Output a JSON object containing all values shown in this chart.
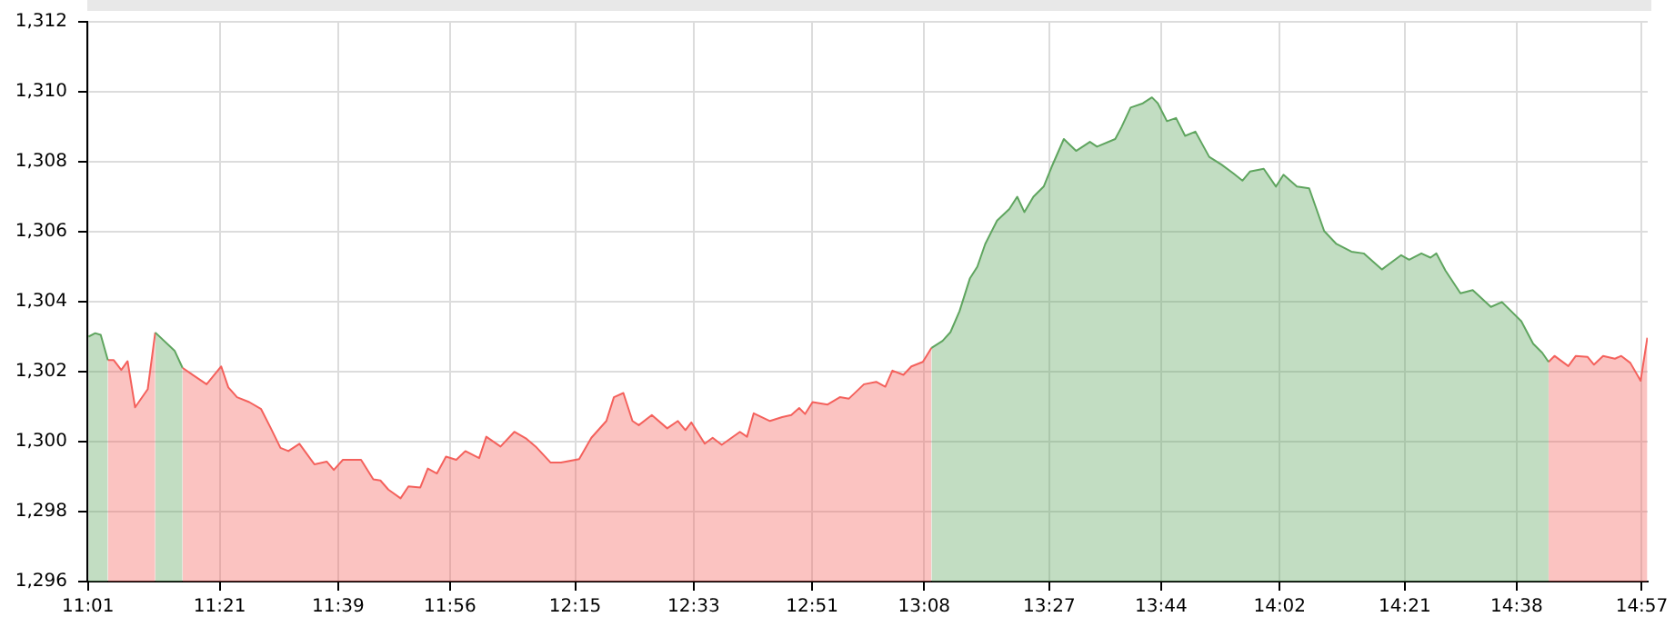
{
  "chart_data": {
    "type": "area",
    "marker": "none",
    "grid": true,
    "x": [
      11.018,
      11.035,
      11.049,
      11.067,
      11.082,
      11.101,
      11.117,
      11.136,
      11.168,
      11.187,
      11.236,
      11.256,
      11.283,
      11.317,
      11.354,
      11.372,
      11.394,
      11.425,
      11.455,
      11.478,
      11.504,
      11.524,
      11.552,
      11.59,
      11.621,
      11.639,
      11.662,
      11.708,
      11.739,
      11.757,
      11.777,
      11.808,
      11.828,
      11.858,
      11.877,
      11.9,
      11.923,
      11.949,
      11.972,
      12.007,
      12.025,
      12.061,
      12.096,
      12.127,
      12.15,
      12.188,
      12.214,
      12.26,
      12.291,
      12.329,
      12.348,
      12.372,
      12.395,
      12.411,
      12.444,
      12.483,
      12.51,
      12.529,
      12.544,
      12.578,
      12.598,
      12.621,
      12.667,
      12.685,
      12.702,
      12.743,
      12.774,
      12.797,
      12.817,
      12.832,
      12.851,
      12.889,
      12.92,
      12.943,
      12.981,
      13.012,
      13.035,
      13.053,
      13.081,
      13.101,
      13.13,
      13.152,
      13.18,
      13.2,
      13.223,
      13.249,
      13.268,
      13.288,
      13.318,
      13.349,
      13.369,
      13.387,
      13.41,
      13.436,
      13.456,
      13.487,
      13.518,
      13.553,
      13.571,
      13.617,
      13.633,
      13.656,
      13.687,
      13.71,
      13.725,
      13.748,
      13.771,
      13.794,
      13.82,
      13.855,
      13.886,
      13.916,
      13.939,
      13.958,
      13.993,
      14.024,
      14.043,
      14.077,
      14.108,
      14.146,
      14.177,
      14.215,
      14.246,
      14.292,
      14.341,
      14.361,
      14.392,
      14.415,
      14.43,
      14.453,
      14.491,
      14.522,
      14.568,
      14.596,
      14.645,
      14.675,
      14.698,
      14.714,
      14.729,
      14.764,
      14.783,
      14.813,
      14.829,
      14.852,
      14.882,
      14.898,
      14.921,
      14.947,
      14.964
    ],
    "series": [
      {
        "color": "#5fa55f",
        "values": [
          1303.0,
          1303.1,
          1303.05,
          1302.33,
          null,
          null,
          null,
          null,
          null,
          1303.12,
          1302.6,
          1302.11,
          null,
          null,
          null,
          null,
          null,
          null,
          null,
          null,
          null,
          null,
          null,
          null,
          null,
          null,
          null,
          null,
          null,
          null,
          null,
          null,
          null,
          null,
          null,
          null,
          null,
          null,
          null,
          null,
          null,
          null,
          null,
          null,
          null,
          null,
          null,
          null,
          null,
          null,
          null,
          null,
          null,
          null,
          null,
          null,
          null,
          null,
          null,
          null,
          null,
          null,
          null,
          null,
          null,
          null,
          null,
          null,
          null,
          null,
          null,
          null,
          null,
          null,
          null,
          null,
          null,
          null,
          null,
          null,
          null,
          1302.68,
          1302.88,
          1303.13,
          1303.73,
          1304.66,
          1305.0,
          1305.65,
          1306.32,
          1306.65,
          1307.0,
          1306.56,
          1307.0,
          1307.29,
          1307.85,
          1308.65,
          1308.31,
          1308.57,
          1308.43,
          1308.65,
          1308.99,
          1309.55,
          1309.67,
          1309.84,
          1309.67,
          1309.16,
          1309.25,
          1308.74,
          1308.86,
          1308.14,
          1307.92,
          1307.67,
          1307.46,
          1307.72,
          1307.8,
          1307.29,
          1307.63,
          1307.29,
          1307.24,
          1306.02,
          1305.65,
          1305.43,
          1305.38,
          1304.92,
          1305.33,
          1305.2,
          1305.38,
          1305.26,
          1305.38,
          1304.89,
          1304.24,
          1304.33,
          1303.85,
          1303.99,
          1303.44,
          1302.8,
          1302.54,
          1302.28,
          null,
          null,
          null,
          null,
          null,
          null,
          null,
          null,
          null,
          null,
          null
        ]
      },
      {
        "color": "#f4615c",
        "values": [
          null,
          null,
          null,
          1302.33,
          1302.33,
          1302.05,
          1302.3,
          1300.98,
          1301.5,
          1303.12,
          null,
          1302.11,
          1301.9,
          1301.64,
          1302.15,
          1301.55,
          1301.27,
          1301.13,
          1300.93,
          1300.42,
          1299.82,
          1299.73,
          1299.94,
          1299.35,
          1299.43,
          1299.19,
          1299.48,
          1299.48,
          1298.92,
          1298.89,
          1298.63,
          1298.38,
          1298.72,
          1298.69,
          1299.23,
          1299.09,
          1299.57,
          1299.48,
          1299.73,
          1299.53,
          1300.14,
          1299.86,
          1300.28,
          1300.08,
          1299.86,
          1299.4,
          1299.4,
          1299.5,
          1300.11,
          1300.59,
          1301.27,
          1301.39,
          1300.59,
          1300.47,
          1300.76,
          1300.38,
          1300.59,
          1300.33,
          1300.55,
          1299.94,
          1300.11,
          1299.91,
          1300.28,
          1300.14,
          1300.81,
          1300.59,
          1300.7,
          1300.76,
          1300.96,
          1300.79,
          1301.13,
          1301.06,
          1301.27,
          1301.23,
          1301.64,
          1301.71,
          1301.57,
          1302.03,
          1301.91,
          1302.15,
          1302.28,
          1302.68,
          null,
          null,
          null,
          null,
          null,
          null,
          null,
          null,
          null,
          null,
          null,
          null,
          null,
          null,
          null,
          null,
          null,
          null,
          null,
          null,
          null,
          null,
          null,
          null,
          null,
          null,
          null,
          null,
          null,
          null,
          null,
          null,
          null,
          null,
          null,
          null,
          null,
          null,
          null,
          null,
          null,
          null,
          null,
          null,
          null,
          null,
          null,
          null,
          null,
          null,
          null,
          null,
          null,
          null,
          null,
          1302.28,
          1302.45,
          1302.16,
          1302.45,
          1302.42,
          1302.2,
          1302.45,
          1302.37,
          1302.45,
          1302.25,
          1301.74,
          1302.97
        ]
      }
    ],
    "xlim": [
      11.015,
      14.965
    ],
    "xticks": [
      {
        "value": 11.0167,
        "label": "11:01"
      },
      {
        "value": 11.35,
        "label": "11:21"
      },
      {
        "value": 11.65,
        "label": "11:39"
      },
      {
        "value": 11.9333,
        "label": "11:56"
      },
      {
        "value": 12.25,
        "label": "12:15"
      },
      {
        "value": 12.55,
        "label": "12:33"
      },
      {
        "value": 12.85,
        "label": "12:51"
      },
      {
        "value": 13.1333,
        "label": "13:08"
      },
      {
        "value": 13.45,
        "label": "13:27"
      },
      {
        "value": 13.7333,
        "label": "13:44"
      },
      {
        "value": 14.0333,
        "label": "14:02"
      },
      {
        "value": 14.35,
        "label": "14:21"
      },
      {
        "value": 14.6333,
        "label": "14:38"
      },
      {
        "value": 14.95,
        "label": "14:57"
      }
    ],
    "ylim": [
      1296,
      1312
    ],
    "yticks": [
      {
        "value": 1296,
        "label": "1,296"
      },
      {
        "value": 1298,
        "label": "1,298"
      },
      {
        "value": 1300,
        "label": "1,300"
      },
      {
        "value": 1302,
        "label": "1,302"
      },
      {
        "value": 1304,
        "label": "1,304"
      },
      {
        "value": 1306,
        "label": "1,306"
      },
      {
        "value": 1308,
        "label": "1,308"
      },
      {
        "value": 1310,
        "label": "1,310"
      },
      {
        "value": 1312,
        "label": "1,312"
      }
    ]
  }
}
